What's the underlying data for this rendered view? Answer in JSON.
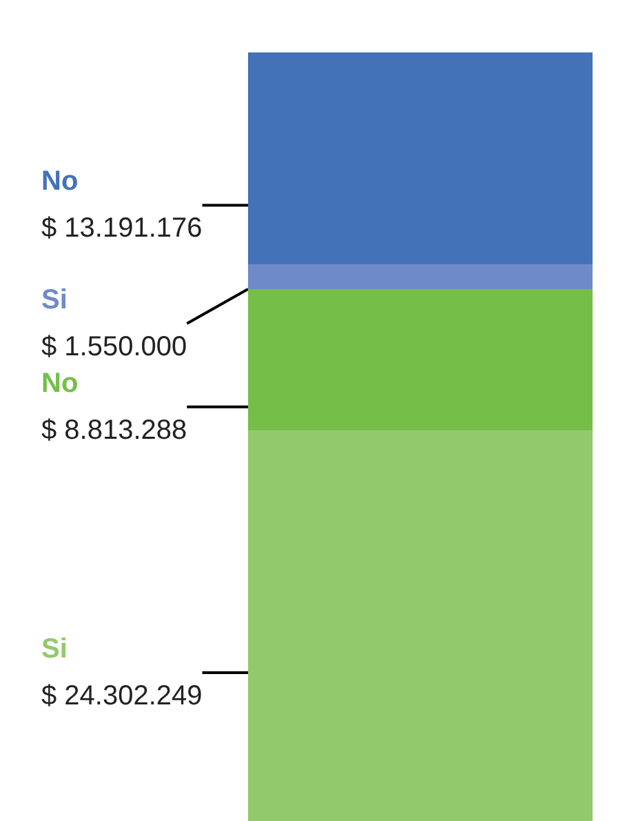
{
  "chart_data": {
    "type": "bar",
    "stacked": true,
    "categories": [
      null
    ],
    "tick_labels": false,
    "legend": false,
    "series": [
      {
        "name": "Si",
        "color": "#92c96b",
        "values": [
          24302249
        ],
        "value_labels": [
          "$ 24.302.249"
        ]
      },
      {
        "name": "No",
        "color": "#75bf48",
        "values": [
          8813288
        ],
        "value_labels": [
          "$ 8.813.288"
        ]
      },
      {
        "name": "Si",
        "color": "#6f8ac8",
        "values": [
          1550000
        ],
        "value_labels": [
          "$ 1.550.000"
        ]
      },
      {
        "name": "No",
        "color": "#4472b8",
        "values": [
          13191176
        ],
        "value_labels": [
          "$ 13.191.176"
        ]
      }
    ]
  }
}
